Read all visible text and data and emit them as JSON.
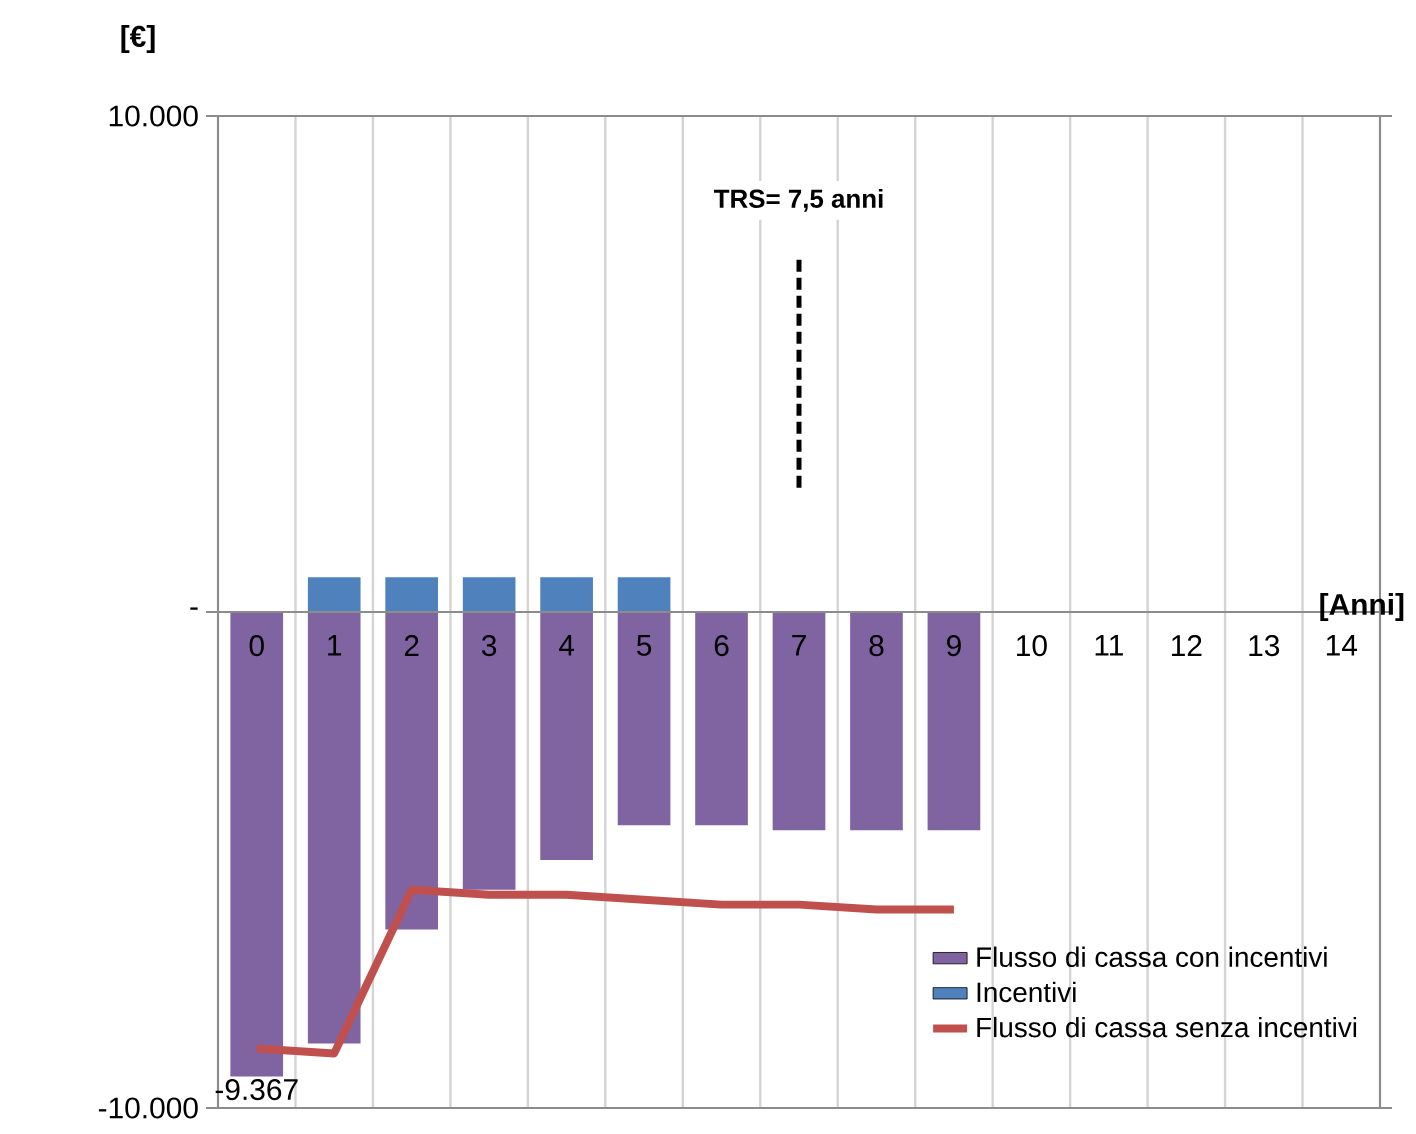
{
  "chart_data": {
    "type": "bar",
    "ylabel": "[€]",
    "xlabel": "[Anni]",
    "categories": [
      "0",
      "1",
      "2",
      "3",
      "4",
      "5",
      "6",
      "7",
      "8",
      "9",
      "10",
      "11",
      "12",
      "13",
      "14"
    ],
    "series": [
      {
        "name": "Flusso di cassa con incentivi",
        "color": "#8064a2",
        "values": [
          -9367,
          -8700,
          -6400,
          -5600,
          -5000,
          -4300,
          -4300,
          -4400,
          -4400,
          -4400,
          null,
          null,
          null,
          null,
          null
        ],
        "value_labels": [
          "-9.367",
          null,
          null,
          null,
          null,
          null,
          null,
          null,
          null,
          null,
          null,
          null,
          null,
          null,
          null
        ]
      },
      {
        "name": "Incentivi",
        "color": "#4f81bd",
        "values": [
          null,
          700,
          700,
          700,
          700,
          700,
          null,
          null,
          null,
          null,
          null,
          null,
          null,
          null,
          null
        ]
      },
      {
        "name": "Flusso di cassa senza incentivi",
        "type": "line",
        "color": "#c0504d",
        "values": [
          -8800,
          -8900,
          -5600,
          -5700,
          -5700,
          -5800,
          -5900,
          -5900,
          -6000,
          -6000,
          null,
          null,
          null,
          null,
          null
        ]
      }
    ],
    "stacked": true,
    "ylim": [
      -10000,
      10000
    ],
    "yticks": [
      {
        "value": -10000,
        "label": "-10.000"
      },
      {
        "value": 0,
        "label": "-"
      },
      {
        "value": 10000,
        "label": "10.000"
      }
    ],
    "ref_lines": [
      {
        "axis": "x",
        "value": "7",
        "label": "TRS= 7,5 anni",
        "color": "#000000",
        "line_style": "dashed"
      }
    ],
    "grid": "x",
    "legend": "bottom right",
    "marker": "none"
  }
}
